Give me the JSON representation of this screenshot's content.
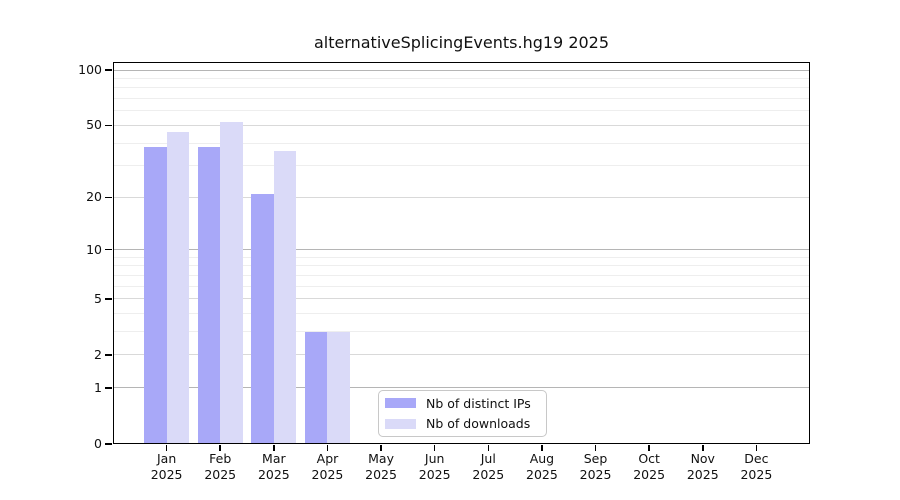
{
  "chart_data": {
    "type": "bar",
    "title": "alternativeSplicingEvents.hg19 2025",
    "categories": [
      "Jan 2025",
      "Feb 2025",
      "Mar 2025",
      "Apr 2025",
      "May 2025",
      "Jun 2025",
      "Jul 2025",
      "Aug 2025",
      "Sep 2025",
      "Oct 2025",
      "Nov 2025",
      "Dec 2025"
    ],
    "series": [
      {
        "name": "Nb of distinct IPs",
        "color": "#a8a8f8",
        "values": [
          38,
          38,
          21,
          3,
          0,
          0,
          0,
          0,
          0,
          0,
          0,
          0
        ]
      },
      {
        "name": "Nb of downloads",
        "color": "#dadaf8",
        "values": [
          46,
          52,
          36,
          3,
          0,
          0,
          0,
          0,
          0,
          0,
          0,
          0
        ]
      }
    ],
    "xlabel": "",
    "ylabel": "",
    "yscale": "log10(1+x)",
    "yticks": [
      100,
      50,
      20,
      10,
      5,
      2,
      1,
      0
    ],
    "ylim": [
      0,
      110
    ],
    "grid": "both",
    "grid_minor_values": [
      3,
      4,
      6,
      7,
      8,
      9,
      30,
      40,
      60,
      70,
      80,
      90
    ],
    "legend_position": "bottom-center-inside"
  }
}
